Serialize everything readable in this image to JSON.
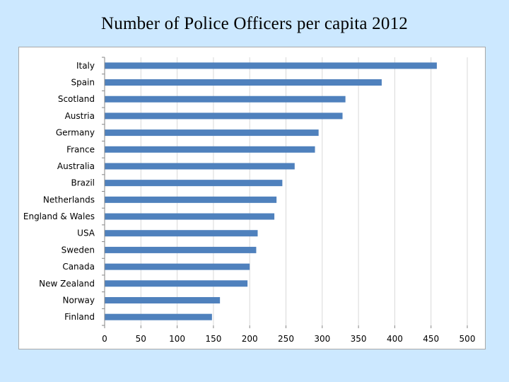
{
  "slide": {
    "title": "Number of Police Officers per capita 2012"
  },
  "chart_data": {
    "type": "bar",
    "orientation": "horizontal",
    "title": "Number of Police Officers per capita 2012",
    "xlabel": "",
    "ylabel": "",
    "xlim": [
      0,
      500
    ],
    "x_ticks": [
      0,
      50,
      100,
      150,
      200,
      250,
      300,
      350,
      400,
      450,
      500
    ],
    "grid": true,
    "bar_color": "#4f81bd",
    "grid_color": "#d9d9d9",
    "categories": [
      "Italy",
      "Spain",
      "Scotland",
      "Austria",
      "Germany",
      "France",
      "Australia",
      "Brazil",
      "Netherlands",
      "England & Wales",
      "USA",
      "Sweden",
      "Canada",
      "New Zealand",
      "Norway",
      "Finland"
    ],
    "values": [
      458,
      382,
      332,
      328,
      295,
      290,
      262,
      245,
      237,
      234,
      211,
      209,
      200,
      197,
      159,
      148
    ]
  }
}
